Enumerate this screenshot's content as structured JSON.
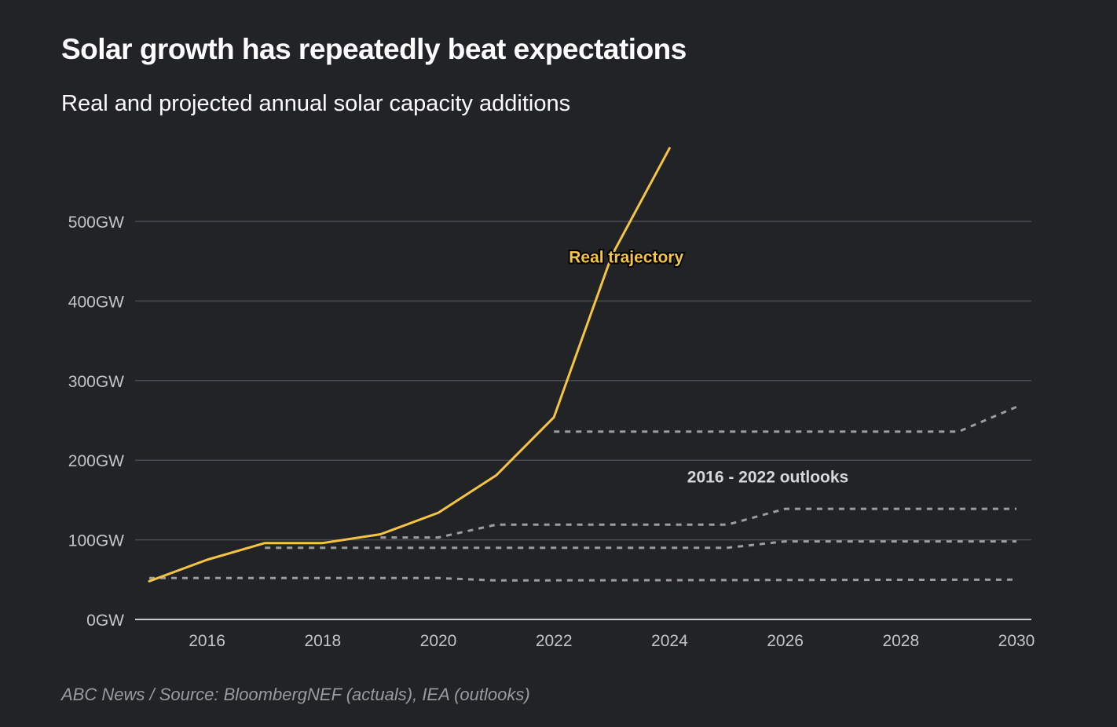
{
  "title": "Solar growth has repeatedly beat expectations",
  "subtitle": "Real and projected annual solar capacity additions",
  "footer": "ABC News / Source: BloombergNEF (actuals), IEA (outlooks)",
  "colors": {
    "background": "#222327",
    "real": "#f5c443",
    "outlook": "#9d9d9d",
    "grid": "#4a4b50",
    "axis": "#ffffff",
    "tick_text": "#c4c5c9"
  },
  "chart_data": {
    "type": "line",
    "title": "Solar growth has repeatedly beat expectations",
    "subtitle": "Real and projected annual solar capacity additions",
    "xlabel": "",
    "ylabel": "",
    "xlim": [
      2015,
      2030
    ],
    "ylim": [
      0,
      500
    ],
    "x_ticks": [
      2016,
      2018,
      2020,
      2022,
      2024,
      2026,
      2028,
      2030
    ],
    "y_ticks": [
      0,
      100,
      200,
      300,
      400,
      500
    ],
    "y_tick_labels": [
      "0GW",
      "100GW",
      "200GW",
      "300GW",
      "400GW",
      "500GW"
    ],
    "grid": "horizontal",
    "annotations": [
      {
        "text": "Real trajectory",
        "x": 2023.25,
        "y": 455,
        "series": "real"
      },
      {
        "text": "2016 - 2022 outlooks",
        "x": 2025.7,
        "y": 179,
        "series": "outlooks"
      }
    ],
    "series": [
      {
        "style": "solid",
        "color": "#f5c443",
        "points": [
          [
            2015,
            48
          ],
          [
            2016,
            75
          ],
          [
            2017,
            96
          ],
          [
            2018,
            96
          ],
          [
            2019,
            107
          ],
          [
            2020,
            134
          ],
          [
            2021,
            181
          ],
          [
            2022,
            254
          ],
          [
            2023,
            457
          ],
          [
            2024,
            592
          ]
        ]
      },
      {
        "style": "dashed",
        "color": "#9d9d9d",
        "points": [
          [
            2015,
            52
          ],
          [
            2020,
            52
          ],
          [
            2021,
            49
          ],
          [
            2030,
            50
          ]
        ]
      },
      {
        "style": "dashed",
        "color": "#9d9d9d",
        "points": [
          [
            2017,
            90
          ],
          [
            2025,
            90
          ],
          [
            2026,
            98
          ],
          [
            2030,
            98
          ]
        ]
      },
      {
        "style": "dashed",
        "color": "#9d9d9d",
        "points": [
          [
            2019,
            103
          ],
          [
            2020,
            103
          ],
          [
            2021,
            119
          ],
          [
            2025,
            119
          ],
          [
            2026,
            139
          ],
          [
            2030,
            139
          ]
        ]
      },
      {
        "style": "dashed",
        "color": "#9d9d9d",
        "points": [
          [
            2022,
            236
          ],
          [
            2029,
            236
          ],
          [
            2030,
            267
          ]
        ]
      }
    ]
  }
}
